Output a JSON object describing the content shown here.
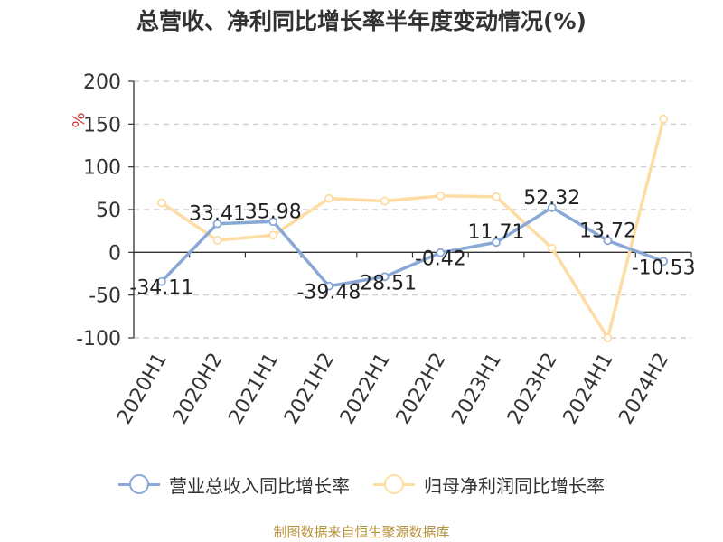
{
  "title": "总营收、净利同比增长率半年度变动情况(%)",
  "source": "制图数据来自恒生聚源数据库",
  "colors": {
    "revenue": "#8aa8d6",
    "profit": "#fddda4",
    "unit": "#cc3333"
  },
  "chart_data": {
    "type": "line",
    "title": "总营收、净利同比增长率半年度变动情况(%)",
    "ylabel": "%",
    "ylim": [
      -100,
      200
    ],
    "yticks": [
      200,
      150,
      100,
      50,
      0,
      -50,
      -100
    ],
    "grid": true,
    "legend_position": "bottom",
    "categories": [
      "2020H1",
      "2020H2",
      "2021H1",
      "2021H2",
      "2022H1",
      "2022H2",
      "2023H1",
      "2023H2",
      "2024H1",
      "2024H2"
    ],
    "series": [
      {
        "name": "营业总收入同比增长率",
        "values": [
          -34.11,
          33.41,
          35.98,
          -39.48,
          -28.51,
          -0.42,
          11.71,
          52.32,
          13.72,
          -10.53
        ],
        "labels": [
          "-34.11",
          "33.41",
          "35.98",
          "-39.48",
          "-28.51",
          "-0.42",
          "11.71",
          "52.32",
          "13.72",
          "-10.53"
        ]
      },
      {
        "name": "归母净利润同比增长率",
        "values": [
          58,
          14,
          20,
          63,
          60,
          66,
          65,
          5,
          -100,
          156
        ]
      }
    ]
  }
}
